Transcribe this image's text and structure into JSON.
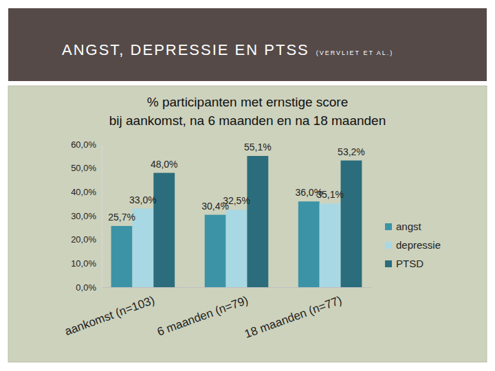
{
  "header": {
    "title": "ANGST, DEPRESSIE EN PTSS",
    "source": "(VERVLIET ET AL.)"
  },
  "chart_data": {
    "type": "bar",
    "title": "% participanten met ernstige score\nbij aankomst, na 6 maanden en na 18 maanden",
    "categories": [
      "aankomst (n=103)",
      "6 maanden (n=79)",
      "18 maanden (n=77)"
    ],
    "series": [
      {
        "name": "angst",
        "color": "#3c93a6",
        "values": [
          25.7,
          30.4,
          36.0
        ],
        "value_labels": [
          "25,7%",
          "30,4%",
          "36,0%"
        ]
      },
      {
        "name": "depressie",
        "color": "#a8d8e3",
        "values": [
          33.0,
          32.5,
          35.1
        ],
        "value_labels": [
          "33,0%",
          "32,5%",
          "35,1%"
        ]
      },
      {
        "name": "PTSD",
        "color": "#2b6d7c",
        "values": [
          48.0,
          55.1,
          53.2
        ],
        "value_labels": [
          "48,0%",
          "55,1%",
          "53,2%"
        ]
      }
    ],
    "ylim": [
      0,
      60
    ],
    "yticks": [
      {
        "value": 0,
        "label": "0,0%"
      },
      {
        "value": 10,
        "label": "10,0%"
      },
      {
        "value": 20,
        "label": "20,0%"
      },
      {
        "value": 30,
        "label": "30,0%"
      },
      {
        "value": 40,
        "label": "40,0%"
      },
      {
        "value": 50,
        "label": "50,0%"
      },
      {
        "value": 60,
        "label": "60,0%"
      }
    ],
    "grid": false,
    "legend": "right",
    "data_labels": true
  }
}
